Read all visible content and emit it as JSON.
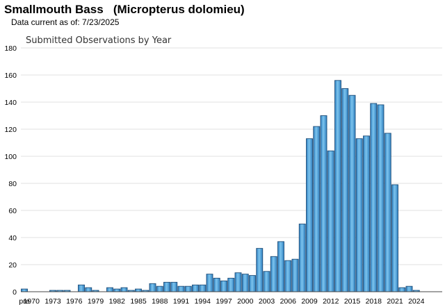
{
  "header": {
    "common_name": "Smallmouth Bass",
    "scientific_name": "(Micropterus dolomieu)",
    "data_current": "Data current as of: 7/23/2025"
  },
  "chart_data": {
    "type": "bar",
    "title": "Submitted Observations by Year",
    "xlabel": "",
    "ylabel": "",
    "ylim": [
      0,
      180
    ],
    "yticks": [
      0,
      20,
      40,
      60,
      80,
      100,
      120,
      140,
      160,
      180
    ],
    "grid": true,
    "bar_color": "#5aaee0",
    "bar_edge_color": "#1f4e79",
    "x_tick_labels": [
      "pre",
      "1970",
      "1973",
      "1976",
      "1979",
      "1982",
      "1985",
      "1988",
      "1991",
      "1994",
      "1997",
      "2000",
      "2003",
      "2006",
      "2009",
      "2012",
      "2015",
      "2018",
      "2021",
      "2024"
    ],
    "categories": [
      "pre",
      "1970",
      "1971",
      "1972",
      "1973",
      "1974",
      "1975",
      "1976",
      "1977",
      "1978",
      "1979",
      "1980",
      "1981",
      "1982",
      "1983",
      "1984",
      "1985",
      "1986",
      "1987",
      "1988",
      "1989",
      "1990",
      "1991",
      "1992",
      "1993",
      "1994",
      "1995",
      "1996",
      "1997",
      "1998",
      "1999",
      "2000",
      "2001",
      "2002",
      "2003",
      "2004",
      "2005",
      "2006",
      "2007",
      "2008",
      "2009",
      "2010",
      "2011",
      "2012",
      "2013",
      "2014",
      "2015",
      "2016",
      "2017",
      "2018",
      "2019",
      "2020",
      "2021",
      "2022",
      "2023",
      "2024",
      "2025"
    ],
    "values": [
      2,
      0,
      0,
      0,
      1,
      1,
      1,
      0,
      5,
      3,
      1,
      0,
      3,
      2,
      3,
      1,
      2,
      1,
      6,
      4,
      7,
      7,
      4,
      4,
      5,
      5,
      13,
      10,
      8,
      10,
      14,
      13,
      12,
      32,
      15,
      26,
      37,
      23,
      24,
      50,
      113,
      122,
      130,
      104,
      156,
      150,
      145,
      113,
      115,
      139,
      138,
      117,
      79,
      3,
      4,
      1,
      0
    ]
  }
}
